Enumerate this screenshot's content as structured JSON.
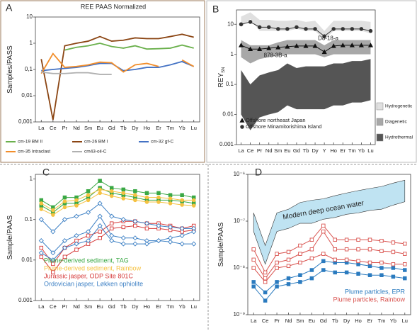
{
  "chart_data": [
    {
      "type": "line",
      "label": "A",
      "title": "REE PAAS Normalized",
      "y_label": "Samples/PASS",
      "log_y": true,
      "grid": false,
      "categories": [
        "La",
        "Ce",
        "Pr",
        "Nd",
        "Sm",
        "Eu",
        "Gd",
        "Tb",
        "Dy",
        "Ho",
        "Er",
        "Tm",
        "Yb",
        "Lu"
      ],
      "ylim": [
        0.001,
        10
      ],
      "yticks": [
        {
          "value": 0.001,
          "label": "0,001"
        },
        {
          "value": 0.01,
          "label": "0,01"
        },
        {
          "value": 0.1,
          "label": "0,1"
        },
        1,
        10
      ],
      "series": [
        {
          "name": "cm-19 BM II",
          "color": "#6ab04c",
          "values": [
            null,
            null,
            0.55,
            0.7,
            0.8,
            1.0,
            0.75,
            0.65,
            0.8,
            0.6,
            0.62,
            0.65,
            0.85,
            0.65
          ]
        },
        {
          "name": "cm-26 BM I",
          "color": "#8b4513",
          "values": [
            0.25,
            0.0012,
            0.8,
            1.0,
            1.2,
            1.8,
            1.2,
            1.3,
            1.6,
            1.5,
            1.5,
            1.8,
            2.2,
            1.7
          ]
        },
        {
          "name": "cm-32 gf-C",
          "color": "#4472c4",
          "values": [
            0.09,
            0.1,
            0.11,
            0.12,
            0.14,
            0.17,
            0.17,
            0.09,
            0.1,
            0.12,
            0.12,
            0.15,
            0.2,
            0.13
          ]
        },
        {
          "name": "cm-35 Intraclast",
          "color": "#f28e2b",
          "values": [
            0.07,
            0.4,
            0.12,
            0.13,
            0.15,
            0.19,
            0.18,
            0.08,
            0.15,
            0.17,
            0.13,
            null,
            0.23,
            0.13
          ]
        },
        {
          "name": "cm43-oil-C",
          "color": "#b0b0b0",
          "values": [
            0.08,
            0.07,
            0.07,
            0.075,
            0.075,
            0.065,
            0.065,
            null,
            null,
            null,
            null,
            null,
            null,
            null
          ]
        }
      ]
    },
    {
      "type": "line",
      "label": "B",
      "y_label": "REY",
      "y_label_subscript": "SN",
      "log_y": true,
      "grid": false,
      "categories": [
        "La",
        "Ce",
        "Pr",
        "Nd",
        "Sm",
        "Eu",
        "Gd",
        "Tb",
        "Dy",
        "Y",
        "Ho",
        "Er",
        "Tm",
        "Yb",
        "Lu"
      ],
      "ylim": [
        0.001,
        30
      ],
      "yticks": [
        0.001,
        0.01,
        0.1,
        1,
        10
      ],
      "bands": [
        {
          "name": "Hydrogenetic",
          "color": "#e0e0e0",
          "upper": [
            18,
            25,
            14,
            14,
            13,
            13,
            14,
            12,
            13,
            6,
            13,
            13,
            13,
            13,
            12
          ],
          "lower": [
            8,
            15,
            6,
            6,
            6,
            6,
            7,
            6,
            6,
            3,
            6,
            6,
            6,
            6,
            5
          ]
        },
        {
          "name": "Diagenetic",
          "color": "#a8a8a8",
          "upper": [
            3,
            2,
            2,
            2,
            2.5,
            3,
            3,
            3,
            3,
            2,
            3,
            3,
            3,
            3,
            3
          ],
          "lower": [
            0.8,
            0.5,
            0.7,
            0.8,
            0.9,
            1,
            1,
            1,
            1,
            0.8,
            1,
            1,
            1,
            1,
            1
          ]
        },
        {
          "name": "Hydrothermal",
          "color": "#555555",
          "upper": [
            0.3,
            0.1,
            0.2,
            0.25,
            0.3,
            0.5,
            0.35,
            0.4,
            0.4,
            0.4,
            0.5,
            0.5,
            0.6,
            0.6,
            0.7
          ],
          "lower": [
            0.01,
            0.003,
            0.008,
            0.01,
            0.012,
            0.02,
            0.015,
            0.015,
            0.015,
            0.015,
            0.02,
            0.02,
            0.025,
            0.025,
            0.03
          ]
        }
      ],
      "series": [
        {
          "name": "Offshore northeast Japan",
          "color": "#111111",
          "marker": "triangle",
          "values": [
            2,
            1.5,
            1.5,
            1.6,
            1.7,
            1.8,
            1.9,
            1.9,
            1.9,
            1.2,
            1.9,
            2,
            2,
            2,
            2
          ]
        },
        {
          "name": "Offshore Minamitorishima Island",
          "color": "#333333",
          "marker": "circle",
          "values": [
            10,
            12,
            8,
            8,
            7,
            7,
            8,
            7,
            7,
            4,
            7,
            7,
            7,
            7,
            6
          ]
        }
      ],
      "annotations": [
        "D8-18-a",
        "878-3B-a"
      ]
    },
    {
      "type": "line",
      "label": "C",
      "y_label": "Sample/PAAS",
      "log_y": true,
      "grid": false,
      "categories": [
        "La",
        "Ce",
        "Pr",
        "Nd",
        "Sm",
        "Eu",
        "Gd",
        "Tb",
        "Dy",
        "Ho",
        "Er",
        "Tm",
        "Yb",
        "Lu"
      ],
      "ylim": [
        0.001,
        1.3
      ],
      "yticks": [
        0.001,
        0.01,
        0.1,
        1
      ],
      "series": [
        {
          "name": "Plume-derived sediment, TAG",
          "color": "#3aa845",
          "marker": "square",
          "values": [
            [
              0.3,
              0.2,
              0.35,
              0.35,
              0.5,
              0.9,
              0.6,
              0.55,
              0.5,
              0.45,
              0.45,
              0.4,
              0.4,
              0.35
            ],
            [
              0.22,
              0.15,
              0.25,
              0.25,
              0.35,
              0.6,
              0.45,
              0.4,
              0.35,
              0.3,
              0.3,
              0.3,
              0.28,
              0.25
            ]
          ]
        },
        {
          "name": "Plume-derived sediment, Rainbow",
          "color": "#f5c242",
          "marker": "circle",
          "values": [
            [
              0.25,
              0.17,
              0.28,
              0.3,
              0.4,
              0.55,
              0.5,
              0.45,
              0.4,
              0.35,
              0.35,
              0.33,
              0.3,
              0.3
            ],
            [
              0.18,
              0.13,
              0.2,
              0.22,
              0.3,
              0.45,
              0.38,
              0.33,
              0.3,
              0.27,
              0.27,
              0.25,
              0.23,
              0.22
            ]
          ]
        },
        {
          "name": "Jurassic jasper, ODP Site 801C",
          "color": "#d63b3b",
          "marker": "square-open",
          "values": [
            [
              0.02,
              0.008,
              0.02,
              0.03,
              0.04,
              0.05,
              0.08,
              0.09,
              0.09,
              0.08,
              0.08,
              0.07,
              0.06,
              0.07
            ],
            [
              0.012,
              0.005,
              0.012,
              0.018,
              0.025,
              0.035,
              0.06,
              0.065,
              0.07,
              0.06,
              0.06,
              0.055,
              0.05,
              0.055
            ]
          ]
        },
        {
          "name": "Ordovician jasper, Løkken ophiolite",
          "color": "#3b7fc4",
          "marker": "diamond-open",
          "values": [
            [
              0.1,
              0.05,
              0.1,
              0.12,
              0.15,
              0.25,
              0.12,
              0.1,
              0.09,
              0.08,
              0.07,
              0.065,
              0.06,
              0.06
            ],
            [
              0.03,
              0.015,
              0.03,
              0.04,
              0.05,
              0.12,
              0.04,
              0.035,
              0.035,
              0.03,
              0.03,
              0.028,
              0.025,
              0.025
            ],
            [
              0.015,
              0.01,
              0.02,
              0.025,
              0.03,
              0.07,
              0.03,
              0.025,
              0.025,
              0.025,
              0.03,
              0.035,
              0.04,
              0.05
            ]
          ]
        }
      ]
    },
    {
      "type": "line",
      "label": "D",
      "y_label": "Sample/PAAS",
      "log_y": true,
      "grid": false,
      "categories": [
        "La",
        "Ce",
        "Pr",
        "Nd",
        "Sm",
        "Eu",
        "Gd",
        "Tb",
        "Dy",
        "Ho",
        "Er",
        "Tm",
        "Yb",
        "Lu"
      ],
      "ylim": [
        1e-09,
        1e-06
      ],
      "yticks": [
        {
          "value": 1e-09,
          "label": "10⁻⁹"
        },
        {
          "value": 1e-08,
          "label": "10⁻⁸"
        },
        {
          "value": 1e-07,
          "label": "10⁻⁷"
        },
        {
          "value": 1e-06,
          "label": "10⁻⁶"
        }
      ],
      "bands": [
        {
          "name": "Modern deep ocean water",
          "color": "#bfe3f2",
          "upper": [
            1.5e-07,
            3e-08,
            1.5e-07,
            1.8e-07,
            2.5e-07,
            2.8e-07,
            3e-07,
            3.5e-07,
            4e-07,
            4.5e-07,
            5e-07,
            5.5e-07,
            6.5e-07,
            7.5e-07
          ],
          "lower": [
            6e-08,
            1.2e-08,
            6e-08,
            7e-08,
            9e-08,
            9e-08,
            1.1e-07,
            1.2e-07,
            1.4e-07,
            1.5e-07,
            1.7e-07,
            1.8e-07,
            2.2e-07,
            2.6e-07
          ]
        }
      ],
      "series": [
        {
          "name": "Plume particles, EPR",
          "color": "#2b7bbf",
          "marker": "square",
          "values": [
            [
              5e-09,
              3e-09,
              5e-09,
              6e-09,
              7e-09,
              9e-09,
              1.4e-08,
              1.3e-08,
              1.3e-08,
              1.2e-08,
              1.1e-08,
              1e-08,
              1e-08,
              9e-09
            ],
            [
              4e-09,
              2e-09,
              4e-09,
              4.5e-09,
              5e-09,
              6e-09,
              9e-09,
              8e-09,
              8e-09,
              7.5e-09,
              7e-09,
              7e-09,
              6.5e-09,
              6e-09
            ]
          ]
        },
        {
          "name": "Plume particles, Rainbow",
          "color": "#d9534f",
          "marker": "square-open",
          "values": [
            [
              2.5e-08,
              8e-09,
              2e-08,
              2.2e-08,
              3e-08,
              4e-08,
              8e-08,
              4e-08,
              4e-08,
              4e-08,
              4e-08,
              3.8e-08,
              3.5e-08,
              3.3e-08
            ],
            [
              1.5e-08,
              6e-09,
              1.3e-08,
              1.5e-08,
              2e-08,
              2.5e-08,
              6e-08,
              2.5e-08,
              2.5e-08,
              2.5e-08,
              2.5e-08,
              2.3e-08,
              2.2e-08,
              2e-08
            ],
            [
              1e-08,
              5e-09,
              1e-08,
              1.1e-08,
              1.3e-08,
              1.6e-08,
              2e-08,
              1.5e-08,
              1.5e-08,
              1.4e-08,
              1.3e-08,
              1.3e-08,
              1.2e-08,
              1.2e-08
            ]
          ]
        }
      ]
    }
  ]
}
